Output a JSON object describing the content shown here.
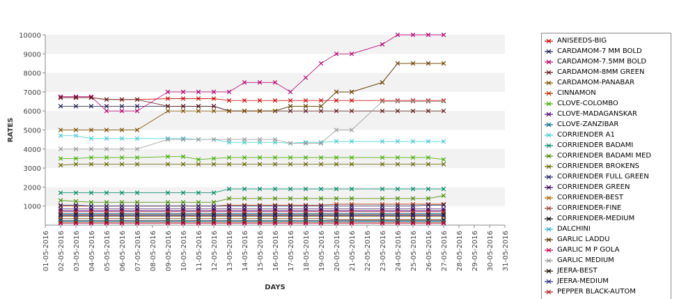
{
  "chart_data": {
    "type": "line",
    "title": "",
    "xlabel": "DAYS",
    "ylabel": "RATES",
    "ylim": [
      0,
      10000
    ],
    "yticks": [
      1000,
      2000,
      3000,
      4000,
      5000,
      6000,
      7000,
      8000,
      9000,
      10000
    ],
    "grid": "alternating horizontal bands",
    "legend_position": "right",
    "x": [
      "01-05-2016",
      "02-05-2016",
      "03-05-2016",
      "04-05-2016",
      "05-05-2016",
      "06-05-2016",
      "07-05-2016",
      "08-05-2016",
      "09-05-2016",
      "10-05-2016",
      "11-05-2016",
      "12-05-2016",
      "13-05-2016",
      "14-05-2016",
      "15-05-2016",
      "16-05-2016",
      "17-05-2016",
      "18-05-2016",
      "19-05-2016",
      "20-05-2016",
      "21-05-2016",
      "22-05-2016",
      "23-05-2016",
      "24-05-2016",
      "25-05-2016",
      "26-05-2016",
      "27-05-2016",
      "28-05-2016",
      "29-05-2016",
      "30-05-2016",
      "31-05-2016"
    ],
    "series": [
      {
        "name": "ANISEEDS-BIG",
        "color": "#cc0000",
        "values": [
          null,
          6700,
          6700,
          6700,
          6600,
          6600,
          6600,
          null,
          6650,
          6650,
          6650,
          6650,
          6550,
          6550,
          6550,
          6550,
          6550,
          6550,
          6550,
          6550,
          6550,
          null,
          6550,
          6550,
          6550,
          6550,
          6550,
          null,
          null,
          null,
          null
        ]
      },
      {
        "name": "CARDAMOM-7 MM BOLD",
        "color": "#1a1a4a",
        "values": [
          null,
          6250,
          6250,
          6250,
          6250,
          6250,
          6250,
          null,
          6250,
          6250,
          6250,
          6250,
          6000,
          6000,
          6000,
          6000,
          6250,
          6250,
          6250,
          7000,
          7000,
          null,
          7500,
          8500,
          8500,
          8500,
          8500,
          null,
          null,
          null,
          null
        ]
      },
      {
        "name": "CARDAMOM-7.5MM BOLD",
        "color": "#b0006e",
        "values": [
          null,
          6750,
          6750,
          6750,
          6000,
          6000,
          6000,
          null,
          7000,
          7000,
          7000,
          7000,
          7000,
          7500,
          7500,
          7500,
          7000,
          7750,
          8500,
          9000,
          9000,
          null,
          9500,
          10000,
          10000,
          10000,
          10000,
          null,
          null,
          null,
          null
        ]
      },
      {
        "name": "CARDAMOM-8MM GREEN",
        "color": "#5a1a1a",
        "values": [
          null,
          6700,
          6700,
          6700,
          6600,
          6600,
          6600,
          null,
          6250,
          6250,
          6250,
          6250,
          6000,
          6000,
          6000,
          6000,
          6000,
          6000,
          6000,
          6000,
          6000,
          null,
          6000,
          6000,
          6000,
          6000,
          6000,
          null,
          null,
          null,
          null
        ]
      },
      {
        "name": "CARDAMOM-PANABAR",
        "color": "#7a5000",
        "values": [
          null,
          5000,
          5000,
          5000,
          5000,
          5000,
          5000,
          null,
          6000,
          6000,
          6000,
          6000,
          6000,
          6000,
          6000,
          6000,
          6250,
          6250,
          6250,
          7000,
          7000,
          null,
          7500,
          8500,
          8500,
          8500,
          8500,
          null,
          null,
          null,
          null
        ]
      },
      {
        "name": "CINNAMON",
        "color": "#b03000",
        "values": [
          null,
          1000,
          1000,
          1000,
          1000,
          1000,
          1000,
          null,
          1000,
          1000,
          1000,
          1000,
          1050,
          1050,
          1050,
          1050,
          1050,
          1050,
          1050,
          1100,
          1100,
          null,
          1100,
          1100,
          1100,
          1100,
          1100,
          null,
          null,
          null,
          null
        ]
      },
      {
        "name": "CLOVE-COLOMBO",
        "color": "#44aa00",
        "values": [
          null,
          3500,
          3500,
          3550,
          3550,
          3550,
          3550,
          null,
          3600,
          3600,
          3450,
          3500,
          3550,
          3550,
          3550,
          3550,
          3550,
          3550,
          3550,
          3550,
          3550,
          null,
          3550,
          3550,
          3550,
          3550,
          3450,
          null,
          null,
          null,
          null
        ]
      },
      {
        "name": "CLOVE-MADAGANSKAR",
        "color": "#4a0077",
        "values": [
          null,
          750,
          750,
          750,
          750,
          750,
          750,
          null,
          750,
          750,
          750,
          750,
          750,
          750,
          750,
          750,
          750,
          750,
          750,
          750,
          750,
          null,
          750,
          750,
          750,
          750,
          750,
          null,
          null,
          null,
          null
        ]
      },
      {
        "name": "CLOVE-ZANZIBAR",
        "color": "#006688",
        "values": [
          null,
          600,
          600,
          600,
          600,
          600,
          600,
          null,
          600,
          600,
          600,
          600,
          600,
          600,
          600,
          600,
          600,
          600,
          600,
          600,
          600,
          null,
          600,
          600,
          600,
          600,
          600,
          null,
          null,
          null,
          null
        ]
      },
      {
        "name": "CORRIENDER A1",
        "color": "#44cccc",
        "values": [
          null,
          4700,
          4700,
          4550,
          4550,
          4550,
          4550,
          null,
          4550,
          4550,
          4500,
          4500,
          4350,
          4350,
          4350,
          4350,
          4300,
          4350,
          4350,
          4400,
          4400,
          null,
          4400,
          4400,
          4400,
          4400,
          4400,
          null,
          null,
          null,
          null
        ]
      },
      {
        "name": "CORRIENDER BADAMI",
        "color": "#008866",
        "values": [
          null,
          1700,
          1700,
          1700,
          1700,
          1700,
          1700,
          null,
          1700,
          1700,
          1700,
          1700,
          1900,
          1900,
          1900,
          1900,
          1900,
          1900,
          1900,
          1900,
          1900,
          null,
          1900,
          1900,
          1900,
          1900,
          1900,
          null,
          null,
          null,
          null
        ]
      },
      {
        "name": "CORRIENDER BADAMI MED",
        "color": "#448800",
        "values": [
          null,
          1300,
          1250,
          1200,
          1200,
          1200,
          1200,
          null,
          1200,
          1200,
          1200,
          1200,
          1400,
          1400,
          1400,
          1400,
          1400,
          1400,
          1400,
          1400,
          1400,
          null,
          1400,
          1400,
          1400,
          1400,
          1550,
          null,
          null,
          null,
          null
        ]
      },
      {
        "name": "CORRIENDER BROKENS",
        "color": "#666600",
        "values": [
          null,
          3150,
          3200,
          3200,
          3200,
          3200,
          3200,
          null,
          3200,
          3200,
          3200,
          3200,
          3200,
          3200,
          3200,
          3200,
          3200,
          3200,
          3200,
          3200,
          3200,
          null,
          3200,
          3200,
          3200,
          3200,
          3200,
          null,
          null,
          null,
          null
        ]
      },
      {
        "name": "CORRIENDER FULL GREEN",
        "color": "#222266",
        "values": [
          null,
          1050,
          1050,
          1000,
          1000,
          1000,
          1000,
          null,
          1000,
          1000,
          1000,
          1000,
          1000,
          1000,
          1000,
          1000,
          1000,
          1000,
          1000,
          1000,
          1000,
          null,
          1000,
          1000,
          1000,
          1050,
          1050,
          null,
          null,
          null,
          null
        ]
      },
      {
        "name": "CORRIENDER GREEN",
        "color": "#330055",
        "values": [
          null,
          850,
          850,
          850,
          850,
          850,
          850,
          null,
          850,
          850,
          850,
          850,
          850,
          850,
          850,
          850,
          850,
          850,
          850,
          850,
          850,
          null,
          850,
          850,
          850,
          850,
          850,
          null,
          null,
          null,
          null
        ]
      },
      {
        "name": "CORRIENDER-BEST",
        "color": "#aa6600",
        "values": [
          null,
          450,
          450,
          450,
          450,
          450,
          450,
          null,
          450,
          450,
          450,
          450,
          450,
          450,
          450,
          450,
          450,
          450,
          450,
          450,
          450,
          null,
          450,
          450,
          450,
          450,
          450,
          null,
          null,
          null,
          null
        ]
      },
      {
        "name": "CORRIENDER-FINE",
        "color": "#884433",
        "values": [
          null,
          350,
          350,
          350,
          350,
          350,
          350,
          null,
          350,
          350,
          350,
          350,
          350,
          350,
          350,
          350,
          350,
          350,
          350,
          300,
          300,
          null,
          300,
          300,
          300,
          300,
          300,
          null,
          null,
          null,
          null
        ]
      },
      {
        "name": "CORRIENDER-MEDIUM",
        "color": "#000000",
        "values": [
          null,
          250,
          250,
          250,
          250,
          250,
          250,
          null,
          250,
          250,
          250,
          250,
          250,
          250,
          250,
          250,
          250,
          250,
          250,
          250,
          250,
          null,
          250,
          250,
          250,
          250,
          250,
          null,
          null,
          null,
          null
        ]
      },
      {
        "name": "DALCHINI",
        "color": "#33aacc",
        "values": [
          null,
          200,
          200,
          200,
          200,
          200,
          200,
          null,
          200,
          200,
          200,
          200,
          200,
          200,
          200,
          200,
          200,
          200,
          200,
          200,
          200,
          null,
          200,
          200,
          200,
          200,
          200,
          null,
          null,
          null,
          null
        ]
      },
      {
        "name": "GARLIC LADDU",
        "color": "#553300",
        "values": [
          null,
          150,
          150,
          150,
          150,
          150,
          150,
          null,
          150,
          150,
          150,
          150,
          150,
          150,
          150,
          150,
          150,
          150,
          150,
          150,
          150,
          null,
          150,
          150,
          150,
          150,
          150,
          null,
          null,
          null,
          null
        ]
      },
      {
        "name": "GARLIC M P GOLA",
        "color": "#cc0044",
        "values": [
          null,
          100,
          100,
          100,
          100,
          100,
          100,
          null,
          100,
          100,
          100,
          100,
          100,
          100,
          100,
          100,
          100,
          100,
          100,
          100,
          100,
          null,
          100,
          100,
          100,
          100,
          100,
          null,
          null,
          null,
          null
        ]
      },
      {
        "name": "GARLIC MEDIUM",
        "color": "#999999",
        "values": [
          null,
          4000,
          4000,
          4000,
          4000,
          4000,
          4000,
          null,
          4500,
          4500,
          4500,
          4500,
          4500,
          4500,
          4500,
          4500,
          4300,
          4300,
          4300,
          5000,
          5000,
          null,
          6500,
          6500,
          6500,
          6500,
          6500,
          null,
          null,
          null,
          null
        ]
      },
      {
        "name": "JEERA-BEST",
        "color": "#1a0a00",
        "values": [
          null,
          550,
          550,
          550,
          550,
          550,
          550,
          null,
          550,
          550,
          550,
          550,
          550,
          550,
          550,
          550,
          550,
          550,
          550,
          550,
          550,
          null,
          550,
          550,
          550,
          550,
          550,
          null,
          null,
          null,
          null
        ]
      },
      {
        "name": "JEERA-MEDIUM",
        "color": "#2a2a88",
        "values": [
          null,
          500,
          500,
          500,
          500,
          500,
          500,
          null,
          500,
          500,
          500,
          500,
          500,
          500,
          500,
          500,
          500,
          500,
          500,
          500,
          500,
          null,
          500,
          500,
          500,
          500,
          500,
          null,
          null,
          null,
          null
        ]
      },
      {
        "name": "PEPPER BLACK-AUTOM",
        "color": "#aa2222",
        "values": [
          null,
          700,
          700,
          700,
          700,
          700,
          700,
          null,
          700,
          700,
          700,
          700,
          700,
          700,
          700,
          700,
          700,
          700,
          700,
          700,
          700,
          null,
          700,
          700,
          700,
          700,
          700,
          null,
          null,
          null,
          null
        ]
      }
    ]
  }
}
